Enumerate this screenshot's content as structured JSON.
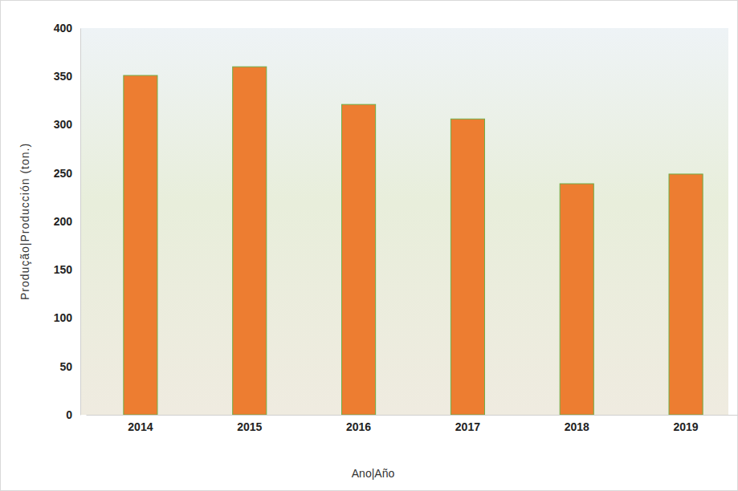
{
  "chart_data": {
    "type": "bar",
    "x_label": "Ano|Año",
    "y_label": "Produção|Producción (ton.)",
    "categories": [
      "2014",
      "2015",
      "2016",
      "2017",
      "2018",
      "2019"
    ],
    "values": [
      351,
      360,
      321,
      306,
      239,
      249
    ],
    "color": "#ed7d31",
    "ylim": [
      0,
      400
    ],
    "yticks": [
      0,
      50,
      100,
      150,
      200,
      250,
      300,
      350,
      400
    ],
    "grid": false
  }
}
